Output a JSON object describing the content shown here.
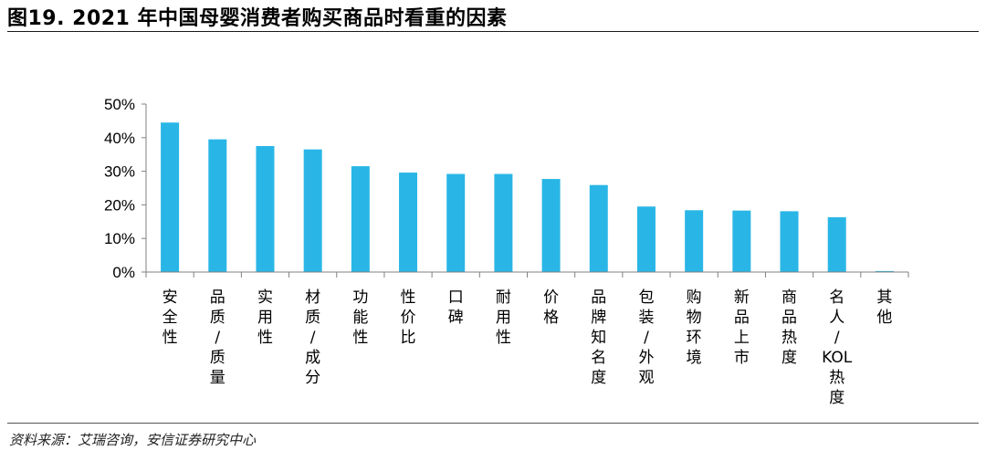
{
  "figure": {
    "title": "图19. 2021 年中国母婴消费者购买商品时看重的因素",
    "source": "资料来源：艾瑞咨询，安信证券研究中心"
  },
  "colors": {
    "bar": "#29b6e6",
    "axis": "#808080"
  },
  "chart_data": {
    "type": "bar",
    "categories": [
      "安全性",
      "品质/质量",
      "实用性",
      "材质/成分",
      "功能性",
      "性价比",
      "口碑",
      "耐用性",
      "价格",
      "品牌知名度",
      "包装/外观",
      "购物环境",
      "新品上市",
      "商品热度",
      "名人/KOL热度",
      "其他"
    ],
    "category_label_lines": [
      [
        "安",
        "全",
        "性"
      ],
      [
        "品",
        "质",
        "/",
        "质",
        "量"
      ],
      [
        "实",
        "用",
        "性"
      ],
      [
        "材",
        "质",
        "/",
        "成",
        "分"
      ],
      [
        "功",
        "能",
        "性"
      ],
      [
        "性",
        "价",
        "比"
      ],
      [
        "口",
        "碑"
      ],
      [
        "耐",
        "用",
        "性"
      ],
      [
        "价",
        "格"
      ],
      [
        "品",
        "牌",
        "知",
        "名",
        "度"
      ],
      [
        "包",
        "装",
        "/",
        "外",
        "观"
      ],
      [
        "购",
        "物",
        "环",
        "境"
      ],
      [
        "新",
        "品",
        "上",
        "市"
      ],
      [
        "商",
        "品",
        "热",
        "度"
      ],
      [
        "名",
        "人",
        "/",
        "KOL",
        "热",
        "度"
      ],
      [
        "其",
        "他"
      ]
    ],
    "values": [
      44.5,
      39.5,
      37.5,
      36.5,
      31.5,
      29.6,
      29.2,
      29.2,
      27.7,
      25.9,
      19.5,
      18.4,
      18.3,
      18.1,
      16.3,
      0.3
    ],
    "unit": "%",
    "ylim": [
      0,
      50
    ],
    "yticks": [
      0,
      10,
      20,
      30,
      40,
      50
    ],
    "ytick_labels": [
      "0%",
      "10%",
      "20%",
      "30%",
      "40%",
      "50%"
    ],
    "grid": false,
    "legend": "none"
  }
}
